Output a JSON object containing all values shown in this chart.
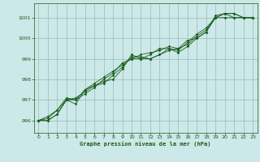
{
  "xlabel": "Graphe pression niveau de la mer (hPa)",
  "xlim": [
    -0.5,
    23.5
  ],
  "ylim": [
    995.4,
    1001.7
  ],
  "yticks": [
    996,
    997,
    998,
    999,
    1000,
    1001
  ],
  "xticks": [
    0,
    1,
    2,
    3,
    4,
    5,
    6,
    7,
    8,
    9,
    10,
    11,
    12,
    13,
    14,
    15,
    16,
    17,
    18,
    19,
    20,
    21,
    22,
    23
  ],
  "bg_color": "#cce8e8",
  "grid_color": "#99bbbb",
  "line_color": "#1a5c1a",
  "series": [
    [
      996.0,
      996.0,
      996.3,
      997.0,
      996.8,
      997.5,
      997.7,
      997.9,
      998.0,
      998.5,
      999.2,
      999.0,
      999.0,
      999.2,
      999.5,
      999.3,
      999.6,
      1000.0,
      1000.3,
      1001.0,
      1001.2,
      1001.2,
      1001.0,
      1001.0
    ],
    [
      996.0,
      996.0,
      996.3,
      997.0,
      997.0,
      997.3,
      997.6,
      998.0,
      998.3,
      998.8,
      999.0,
      999.0,
      999.2,
      999.5,
      999.5,
      999.4,
      999.8,
      1000.2,
      1000.5,
      1001.0,
      1001.2,
      1001.2,
      1001.0,
      1001.0
    ],
    [
      996.0,
      996.1,
      996.5,
      997.0,
      997.1,
      997.4,
      997.7,
      997.8,
      998.2,
      998.6,
      999.1,
      999.1,
      999.0,
      999.2,
      999.4,
      999.5,
      999.7,
      1000.1,
      1000.4,
      1001.0,
      1001.0,
      1001.0,
      1001.0,
      1001.0
    ],
    [
      996.0,
      996.2,
      996.5,
      997.1,
      997.0,
      997.5,
      997.8,
      998.1,
      998.4,
      998.7,
      999.0,
      999.2,
      999.3,
      999.4,
      999.6,
      999.5,
      999.9,
      1000.0,
      1000.3,
      1001.1,
      1001.2,
      1001.0,
      1001.0,
      1001.0
    ]
  ]
}
